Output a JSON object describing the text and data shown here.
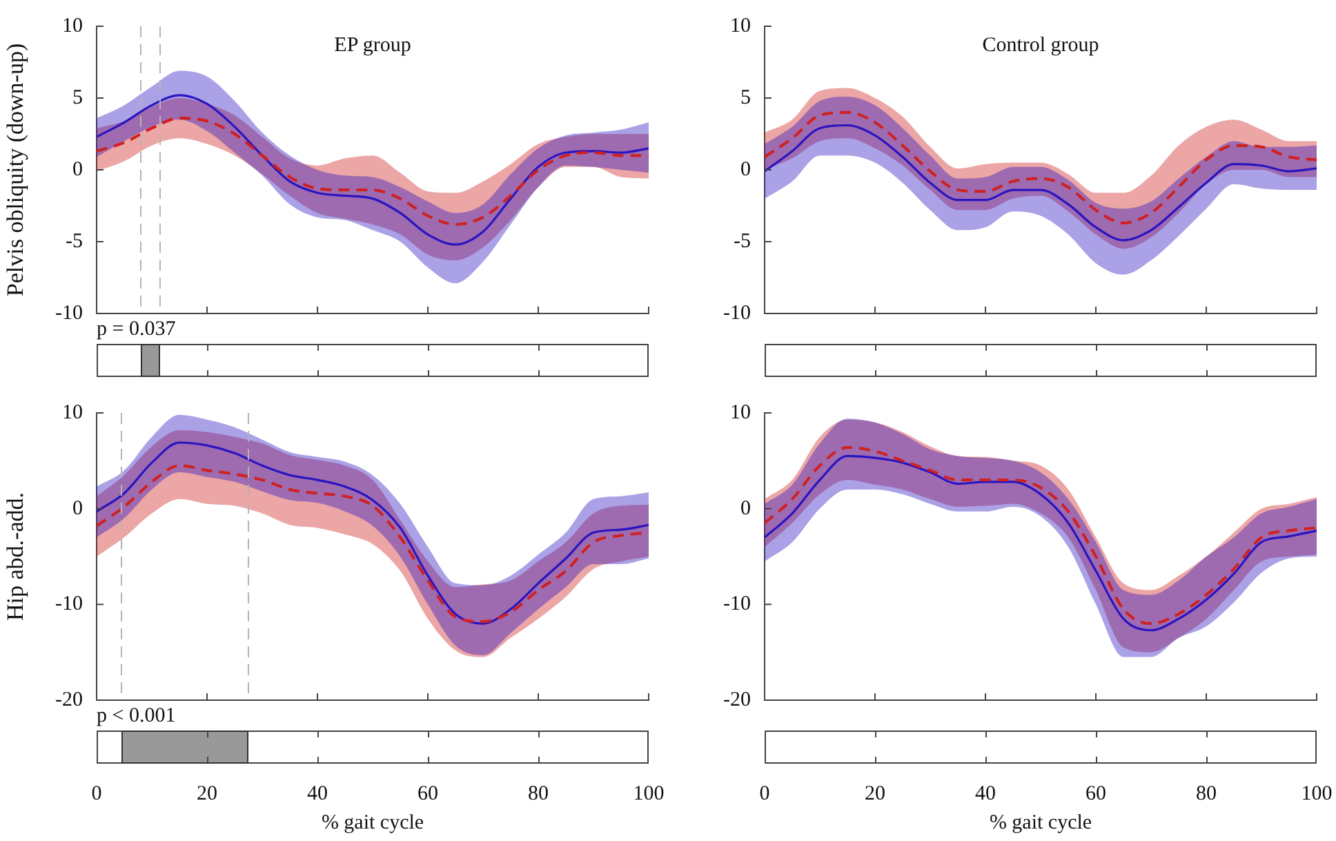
{
  "chart_data": [
    {
      "type": "line",
      "title": "EP group",
      "ylabel": "Pelvis obliquity (down-up)",
      "x": [
        0,
        5,
        10,
        15,
        20,
        25,
        30,
        35,
        40,
        45,
        50,
        55,
        60,
        65,
        70,
        75,
        80,
        85,
        90,
        95,
        100
      ],
      "xlim": [
        0,
        100
      ],
      "xticks": [
        0,
        20,
        40,
        60,
        80,
        100
      ],
      "ylim": [
        -10,
        10
      ],
      "yticks": [
        -10,
        -5,
        0,
        5,
        10
      ],
      "tick_labels": "y",
      "series": [
        {
          "color": "#2a14c0",
          "line_style": "solid",
          "values": [
            2.3,
            3.3,
            4.5,
            5.2,
            4.6,
            3.0,
            1.0,
            -0.8,
            -1.6,
            -1.8,
            -2.0,
            -3.0,
            -4.5,
            -5.2,
            -4.3,
            -2.0,
            0.2,
            1.2,
            1.3,
            1.2,
            1.5
          ],
          "upper": [
            3.6,
            4.5,
            5.8,
            6.9,
            6.5,
            4.8,
            2.6,
            1.0,
            0.0,
            -0.4,
            -0.5,
            -1.2,
            -2.2,
            -3.0,
            -2.4,
            -0.3,
            1.5,
            2.4,
            2.6,
            2.8,
            3.3
          ],
          "lower": [
            0.9,
            2.0,
            3.0,
            3.5,
            2.7,
            1.2,
            -0.4,
            -2.4,
            -3.3,
            -3.5,
            -4.2,
            -5.0,
            -6.8,
            -7.9,
            -6.4,
            -3.8,
            -1.2,
            0.3,
            0.2,
            0.0,
            -0.2
          ]
        },
        {
          "color": "#d02020",
          "line_style": "dashed",
          "values": [
            1.3,
            1.9,
            2.9,
            3.6,
            3.4,
            2.5,
            1.0,
            -0.5,
            -1.3,
            -1.4,
            -1.4,
            -2.0,
            -3.2,
            -3.8,
            -3.3,
            -1.8,
            0.0,
            1.0,
            1.2,
            1.0,
            1.0
          ],
          "upper": [
            2.9,
            3.4,
            4.4,
            5.0,
            4.6,
            3.8,
            2.3,
            0.8,
            0.3,
            0.8,
            1.0,
            -0.2,
            -1.5,
            -1.6,
            -0.8,
            0.4,
            1.8,
            2.3,
            2.5,
            2.5,
            2.5
          ],
          "lower": [
            -0.1,
            0.6,
            1.7,
            2.2,
            1.8,
            1.0,
            -0.3,
            -1.8,
            -3.0,
            -3.4,
            -3.8,
            -4.5,
            -5.9,
            -6.3,
            -5.4,
            -3.5,
            -1.2,
            0.2,
            0.2,
            -0.5,
            -0.6
          ]
        }
      ],
      "ref_lines": [
        {
          "axis": "x",
          "value": 8,
          "color": "#b4b4b4",
          "line_style": "dashed"
        },
        {
          "axis": "x",
          "value": 11.5,
          "color": "#b4b4b4",
          "line_style": "dashed"
        }
      ],
      "annotations": [
        "p = 0.037"
      ]
    },
    {
      "type": "line",
      "title": "Control group",
      "x": [
        0,
        5,
        10,
        15,
        20,
        25,
        30,
        35,
        40,
        45,
        50,
        55,
        60,
        65,
        70,
        75,
        80,
        85,
        90,
        95,
        100
      ],
      "xlim": [
        0,
        100
      ],
      "xticks": [
        0,
        20,
        40,
        60,
        80,
        100
      ],
      "ylim": [
        -10,
        10
      ],
      "yticks": [
        -10,
        -5,
        0,
        5,
        10
      ],
      "tick_labels": "y",
      "series": [
        {
          "color": "#2a14c0",
          "line_style": "solid",
          "values": [
            -0.1,
            1.3,
            2.9,
            3.1,
            2.4,
            0.9,
            -0.9,
            -2.1,
            -2.1,
            -1.4,
            -1.4,
            -2.4,
            -4.0,
            -4.9,
            -4.2,
            -2.6,
            -0.9,
            0.4,
            0.3,
            -0.1,
            0.1
          ],
          "upper": [
            1.8,
            3.0,
            4.8,
            5.1,
            4.5,
            2.9,
            1.0,
            -0.6,
            -0.5,
            0.2,
            0.2,
            -0.7,
            -2.3,
            -2.7,
            -2.2,
            -0.6,
            0.9,
            2.0,
            1.6,
            1.6,
            1.7
          ],
          "lower": [
            -2.0,
            -0.8,
            1.0,
            1.0,
            0.5,
            -0.9,
            -2.8,
            -4.2,
            -4.0,
            -2.9,
            -3.2,
            -4.5,
            -6.5,
            -7.3,
            -6.3,
            -4.6,
            -2.7,
            -1.0,
            -1.3,
            -1.4,
            -1.4
          ]
        },
        {
          "color": "#d02020",
          "line_style": "dashed",
          "values": [
            0.9,
            2.2,
            3.8,
            4.0,
            3.3,
            1.7,
            -0.1,
            -1.4,
            -1.5,
            -0.8,
            -0.6,
            -1.2,
            -2.8,
            -3.7,
            -3.0,
            -1.2,
            0.7,
            1.7,
            1.6,
            0.9,
            0.7
          ],
          "upper": [
            2.6,
            3.5,
            5.5,
            5.7,
            5.0,
            3.7,
            1.6,
            0.1,
            0.4,
            0.5,
            0.5,
            -0.3,
            -1.6,
            -1.6,
            -0.4,
            1.7,
            3.0,
            3.5,
            2.8,
            2.0,
            2.0
          ],
          "lower": [
            0.0,
            0.8,
            2.0,
            2.2,
            1.5,
            0.3,
            -1.4,
            -2.8,
            -2.8,
            -2.0,
            -1.8,
            -2.9,
            -4.5,
            -5.5,
            -4.7,
            -3.0,
            -1.0,
            0.0,
            0.0,
            -0.5,
            -0.5
          ]
        }
      ]
    },
    {
      "type": "line",
      "ylabel": "Hip abd.-add.",
      "xlabel": "% gait cycle",
      "x": [
        0,
        5,
        10,
        15,
        20,
        25,
        30,
        35,
        40,
        45,
        50,
        55,
        60,
        65,
        70,
        75,
        80,
        85,
        90,
        95,
        100
      ],
      "xlim": [
        0,
        100
      ],
      "xticks": [
        0,
        20,
        40,
        60,
        80,
        100
      ],
      "ylim": [
        -20,
        10
      ],
      "yticks": [
        -20,
        -10,
        0,
        10
      ],
      "series": [
        {
          "color": "#2a14c0",
          "line_style": "solid",
          "values": [
            -0.3,
            1.6,
            4.8,
            6.9,
            6.6,
            5.8,
            4.5,
            3.5,
            3.0,
            2.3,
            0.9,
            -2.0,
            -7.0,
            -11.0,
            -12.0,
            -10.5,
            -7.8,
            -5.2,
            -2.5,
            -2.2,
            -1.7
          ],
          "upper": [
            2.3,
            4.0,
            7.5,
            9.8,
            9.3,
            8.5,
            7.2,
            5.9,
            5.4,
            4.9,
            3.5,
            0.5,
            -4.0,
            -7.8,
            -8.0,
            -7.0,
            -4.8,
            -2.5,
            1.0,
            1.3,
            1.7
          ],
          "lower": [
            -3.0,
            -1.0,
            2.0,
            3.8,
            3.3,
            2.8,
            1.8,
            0.9,
            0.6,
            -0.3,
            -1.8,
            -5.0,
            -10.0,
            -14.3,
            -15.3,
            -13.0,
            -10.5,
            -8.2,
            -5.8,
            -5.8,
            -5.2
          ]
        },
        {
          "color": "#d02020",
          "line_style": "dashed",
          "values": [
            -1.8,
            0.2,
            2.8,
            4.5,
            4.0,
            3.6,
            3.0,
            2.0,
            1.6,
            1.3,
            0.3,
            -3.0,
            -7.5,
            -11.3,
            -11.8,
            -10.8,
            -8.5,
            -6.5,
            -3.5,
            -2.8,
            -2.5
          ],
          "upper": [
            1.3,
            3.5,
            6.5,
            8.2,
            8.0,
            7.5,
            6.8,
            5.6,
            5.1,
            4.5,
            3.0,
            -1.2,
            -5.5,
            -8.2,
            -7.9,
            -7.5,
            -5.5,
            -3.5,
            -0.5,
            0.3,
            0.4
          ],
          "lower": [
            -5.0,
            -3.0,
            -0.5,
            1.0,
            0.5,
            0.3,
            -0.5,
            -1.7,
            -2.0,
            -2.7,
            -3.7,
            -6.5,
            -11.5,
            -14.8,
            -15.5,
            -13.5,
            -11.5,
            -9.2,
            -6.3,
            -5.5,
            -5.0
          ]
        }
      ],
      "ref_lines": [
        {
          "axis": "x",
          "value": 4.5,
          "color": "#b4b4b4",
          "line_style": "dashed"
        },
        {
          "axis": "x",
          "value": 27.5,
          "color": "#b4b4b4",
          "line_style": "dashed"
        }
      ],
      "annotations": [
        "p < 0.001"
      ]
    },
    {
      "type": "line",
      "xlabel": "% gait cycle",
      "x": [
        0,
        5,
        10,
        15,
        20,
        25,
        30,
        35,
        40,
        45,
        50,
        55,
        60,
        65,
        70,
        75,
        80,
        85,
        90,
        95,
        100
      ],
      "xlim": [
        0,
        100
      ],
      "xticks": [
        0,
        20,
        40,
        60,
        80,
        100
      ],
      "ylim": [
        -20,
        10
      ],
      "yticks": [
        -20,
        -10,
        0,
        10
      ],
      "series": [
        {
          "color": "#2a14c0",
          "line_style": "solid",
          "values": [
            -3.0,
            -0.5,
            3.0,
            5.5,
            5.3,
            4.8,
            3.8,
            2.6,
            2.8,
            2.8,
            1.5,
            -1.5,
            -6.5,
            -11.5,
            -12.7,
            -11.5,
            -9.5,
            -6.8,
            -3.5,
            -2.9,
            -2.3
          ],
          "upper": [
            0.5,
            2.5,
            6.8,
            9.4,
            9.0,
            7.8,
            6.2,
            5.5,
            5.3,
            5.0,
            3.8,
            1.0,
            -3.5,
            -8.5,
            -9.0,
            -7.5,
            -5.0,
            -3.0,
            -0.5,
            0.2,
            1.0
          ],
          "lower": [
            -5.5,
            -3.5,
            0.0,
            2.0,
            2.0,
            1.5,
            0.5,
            -0.3,
            -0.3,
            0.2,
            -0.8,
            -4.0,
            -10.0,
            -15.5,
            -15.5,
            -13.5,
            -12.3,
            -9.8,
            -6.7,
            -5.2,
            -5.0
          ]
        },
        {
          "color": "#d02020",
          "line_style": "dashed",
          "values": [
            -1.5,
            1.0,
            4.5,
            6.4,
            6.0,
            5.0,
            4.0,
            3.0,
            3.0,
            3.0,
            2.2,
            -0.3,
            -5.0,
            -10.5,
            -12.0,
            -11.0,
            -9.0,
            -6.3,
            -3.0,
            -2.3,
            -2.0
          ],
          "upper": [
            1.0,
            3.0,
            7.5,
            9.3,
            9.0,
            8.0,
            6.5,
            5.5,
            5.4,
            5.0,
            4.5,
            2.0,
            -3.0,
            -7.8,
            -8.5,
            -7.0,
            -5.0,
            -2.5,
            0.0,
            0.5,
            1.2
          ],
          "lower": [
            -4.0,
            -1.5,
            1.5,
            3.0,
            2.5,
            2.0,
            1.0,
            0.2,
            0.3,
            0.5,
            -0.5,
            -3.0,
            -8.5,
            -14.5,
            -15.0,
            -13.5,
            -11.5,
            -8.5,
            -5.5,
            -5.0,
            -4.8
          ]
        }
      ]
    }
  ]
}
